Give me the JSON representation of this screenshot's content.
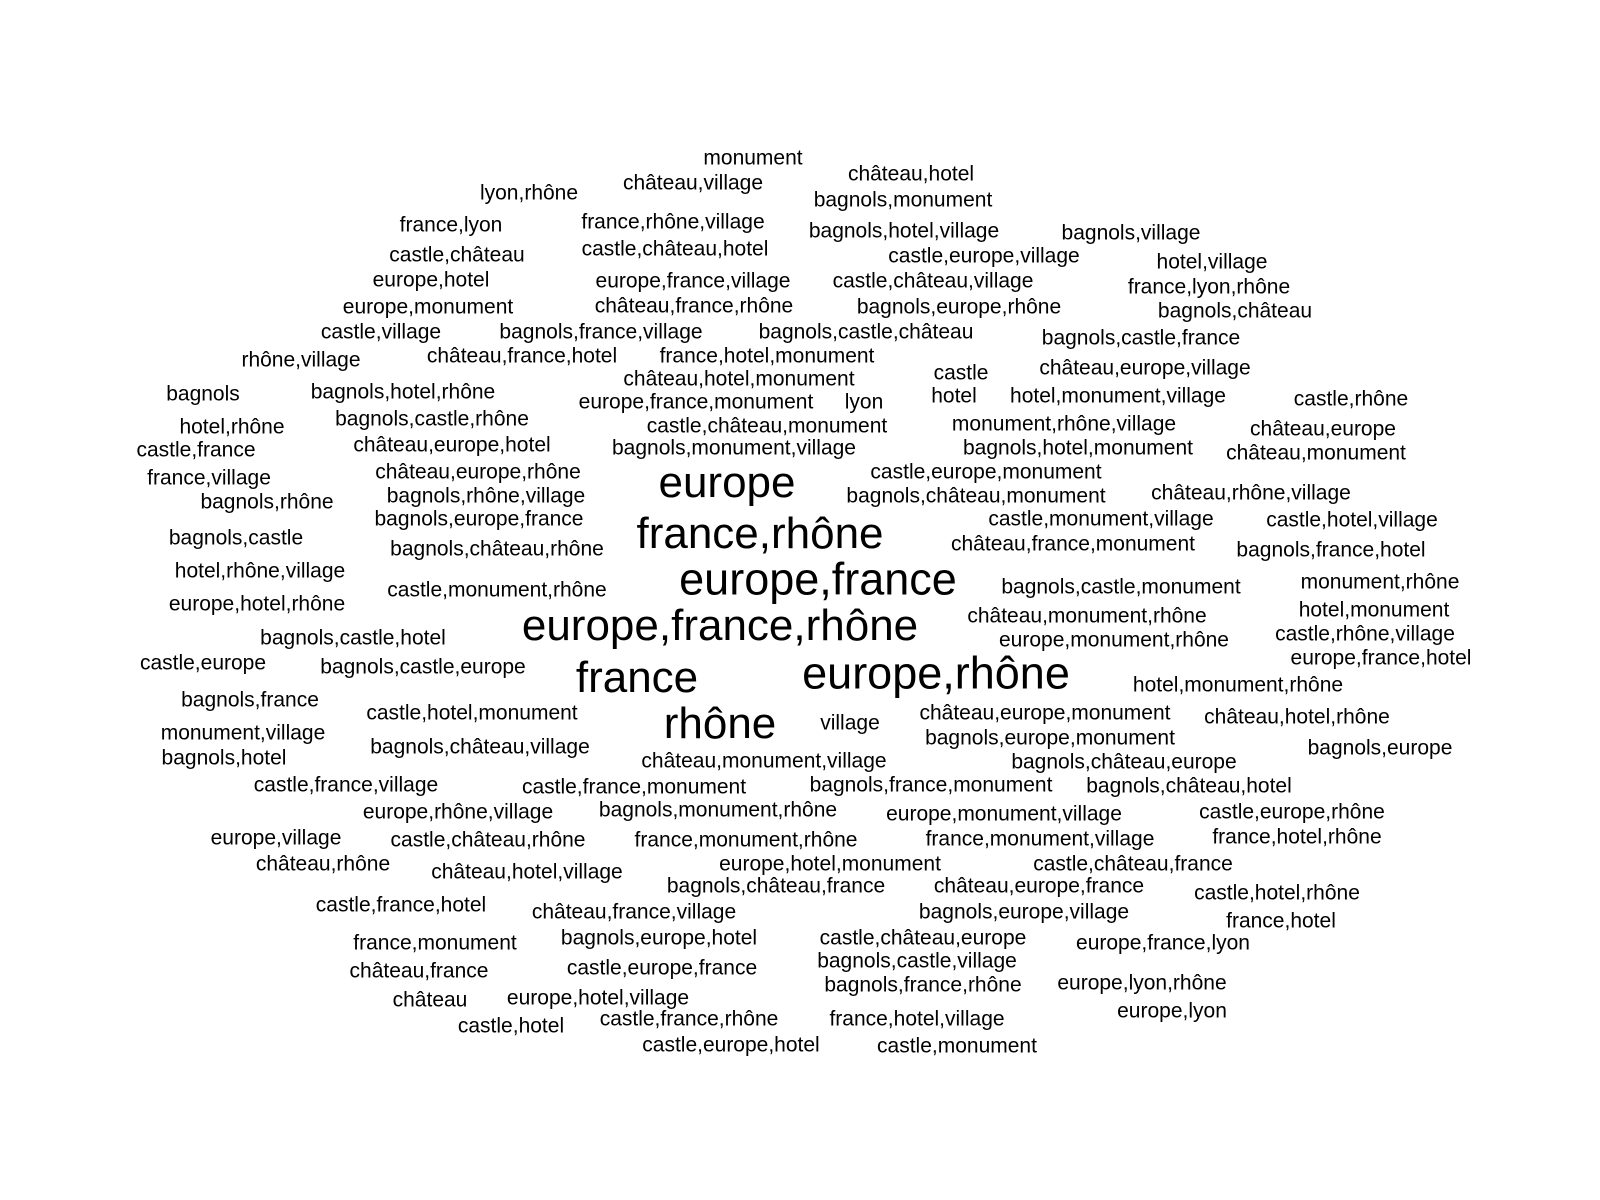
{
  "text_color": "#000000",
  "background_color": "#ffffff",
  "words": [
    "monument",
    "château,hotel",
    "lyon,rhône",
    "château,village",
    "bagnols,monument",
    "france,lyon",
    "france,rhône,village",
    "bagnols,hotel,village",
    "bagnols,village",
    "castle,château",
    "castle,château,hotel",
    "castle,europe,village",
    "hotel,village",
    "europe,hotel",
    "europe,france,village",
    "castle,château,village",
    "france,lyon,rhône",
    "europe,monument",
    "château,france,rhône",
    "bagnols,europe,rhône",
    "bagnols,château",
    "castle,village",
    "bagnols,france,village",
    "bagnols,castle,château",
    "bagnols,castle,france",
    "rhône,village",
    "château,france,hotel",
    "france,hotel,monument",
    "castle",
    "château,europe,village",
    "château,hotel,monument",
    "bagnols",
    "bagnols,hotel,rhône",
    "europe,france,monument",
    "lyon",
    "hotel",
    "hotel,monument,village",
    "castle,rhône",
    "hotel,rhône",
    "bagnols,castle,rhône",
    "castle,château,monument",
    "monument,rhône,village",
    "château,europe",
    "castle,france",
    "château,europe,hotel",
    "bagnols,monument,village",
    "bagnols,hotel,monument",
    "château,monument",
    "france,village",
    "château,europe,rhône",
    "europe",
    "castle,europe,monument",
    "bagnols,rhône",
    "bagnols,rhône,village",
    "bagnols,château,monument",
    "château,rhône,village",
    "bagnols,europe,france",
    "castle,monument,village",
    "castle,hotel,village",
    "bagnols,castle",
    "france,rhône",
    "château,france,monument",
    "bagnols,château,rhône",
    "bagnols,france,hotel",
    "hotel,rhône,village",
    "europe,france",
    "castle,monument,rhône",
    "bagnols,castle,monument",
    "monument,rhône",
    "europe,hotel,rhône",
    "hotel,monument",
    "château,monument,rhône",
    "europe,france,rhône",
    "bagnols,castle,hotel",
    "castle,rhône,village",
    "europe,monument,rhône",
    "castle,europe",
    "bagnols,castle,europe",
    "europe,france,hotel",
    "europe,rhône",
    "france",
    "hotel,monument,rhône",
    "bagnols,france",
    "château,europe,monument",
    "castle,hotel,monument",
    "château,hotel,rhône",
    "rhône",
    "village",
    "monument,village",
    "bagnols,europe,monument",
    "bagnols,château,village",
    "bagnols,europe",
    "bagnols,hotel",
    "château,monument,village",
    "bagnols,château,europe",
    "castle,france,village",
    "castle,france,monument",
    "bagnols,france,monument",
    "bagnols,château,hotel",
    "europe,rhône,village",
    "bagnols,monument,rhône",
    "europe,monument,village",
    "castle,europe,rhône",
    "europe,village",
    "castle,château,rhône",
    "france,monument,rhône",
    "france,monument,village",
    "france,hotel,rhône",
    "europe,hotel,monument",
    "château,rhône",
    "castle,château,france",
    "château,hotel,village",
    "bagnols,château,france",
    "château,europe,france",
    "castle,hotel,rhône",
    "castle,france,hotel",
    "bagnols,europe,village",
    "château,france,village",
    "france,hotel",
    "france,monument",
    "bagnols,europe,hotel",
    "castle,château,europe",
    "europe,france,lyon",
    "château,france",
    "castle,europe,france",
    "bagnols,castle,village",
    "europe,lyon,rhône",
    "château",
    "europe,hotel,village",
    "bagnols,france,rhône",
    "europe,lyon",
    "castle,hotel",
    "castle,france,rhône",
    "france,hotel,village",
    "castle,europe,hotel",
    "castle,monument"
  ]
}
